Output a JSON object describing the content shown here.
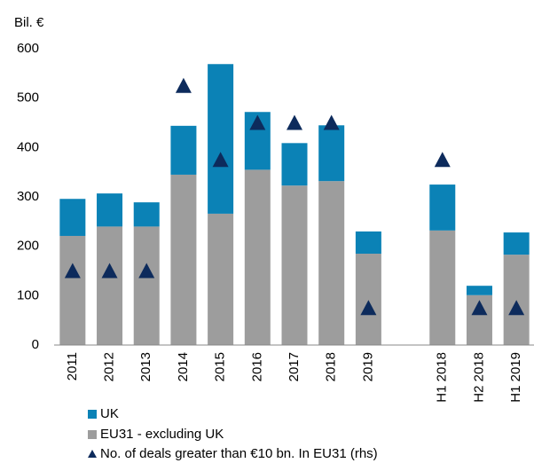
{
  "chart_data": {
    "type": "bar",
    "stacked": true,
    "ylabel": "Bil. €",
    "categories": [
      "2011",
      "2012",
      "2013",
      "2014",
      "2015",
      "2016",
      "2017",
      "2018",
      "2019",
      null,
      "H1 2018",
      "H2 2018",
      "H1 2019"
    ],
    "series": [
      {
        "name": "UK",
        "color": "#0b82b6",
        "type": "bar",
        "values": [
          75,
          67,
          49,
          99,
          303,
          117,
          86,
          113,
          45,
          null,
          93,
          19,
          45
        ]
      },
      {
        "name": "EU31 - excluding UK",
        "color": "#9d9d9d",
        "type": "bar",
        "values": [
          221,
          240,
          240,
          345,
          266,
          355,
          323,
          332,
          185,
          null,
          232,
          101,
          183
        ]
      },
      {
        "name": "No. of deals greater than €10 bn. In EU31 (rhs)",
        "color": "#0d2b5c",
        "type": "triangle",
        "axis": "y2",
        "values": [
          2,
          2,
          2,
          7,
          5,
          6,
          6,
          6,
          1,
          null,
          5,
          1,
          1
        ]
      }
    ],
    "ylim": [
      0,
      600
    ],
    "yticks": [
      0,
      100,
      200,
      300,
      400,
      500,
      600
    ],
    "y2lim": [
      0,
      8
    ],
    "grid": false
  }
}
